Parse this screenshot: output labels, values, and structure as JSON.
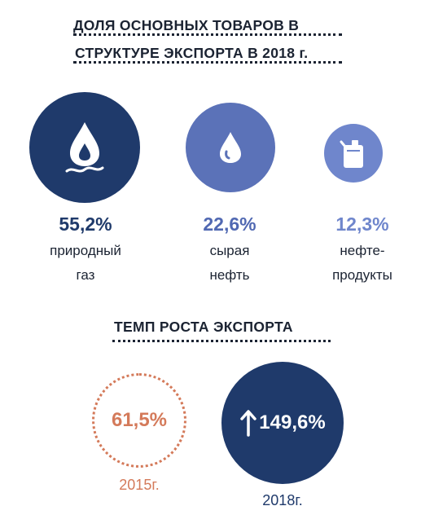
{
  "section1": {
    "title_line1": "ДОЛЯ ОСНОВНЫХ ТОВАРОВ В",
    "title_line2": "СТРУКТУРЕ ЭКСПОРТА В 2018 г."
  },
  "items": [
    {
      "percent": "55,2%",
      "label_line1": "природный",
      "label_line2": "газ",
      "icon": "gas-flame-drop-icon",
      "color": "#1f3a6b"
    },
    {
      "percent": "22,6%",
      "label_line1": "сырая",
      "label_line2": "нефть",
      "icon": "oil-drop-icon",
      "color": "#5068b2"
    },
    {
      "percent": "12,3%",
      "label_line1": "нефте-",
      "label_line2": "продукты",
      "icon": "fuel-canister-icon",
      "color": "#6f86cc"
    }
  ],
  "section2": {
    "title": "ТЕМП РОСТА ЭКСПОРТА"
  },
  "growth": [
    {
      "value": "61,5%",
      "year": "2015г.",
      "color": "#d47a5a"
    },
    {
      "value": "149,6%",
      "year": "2018г.",
      "color": "#1f3a6b",
      "icon": "arrow-up-icon"
    }
  ]
}
